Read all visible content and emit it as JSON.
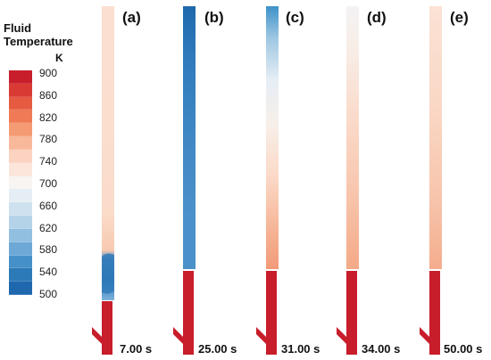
{
  "legend": {
    "title_line1": "Fluid",
    "title_line2": "Temperature",
    "unit": "K",
    "ticks": [
      "900",
      "860",
      "820",
      "780",
      "740",
      "700",
      "660",
      "620",
      "580",
      "540",
      "500"
    ],
    "colors": [
      "#c81d2b",
      "#d93a34",
      "#e55a40",
      "#ef7a55",
      "#f59b74",
      "#f8b89a",
      "#fbd3c0",
      "#fce6db",
      "#f7f4f1",
      "#e6eef5",
      "#cfe1ee",
      "#b4d2e8",
      "#91bfe0",
      "#6ea8d6",
      "#4690c8",
      "#2d7ab8",
      "#1f68ad"
    ]
  },
  "panels": [
    {
      "label": "(a)",
      "time": "7.00 s"
    },
    {
      "label": "(b)",
      "time": "25.00 s"
    },
    {
      "label": "(c)",
      "time": "31.00 s"
    },
    {
      "label": "(d)",
      "time": "34.00 s"
    },
    {
      "label": "(e)",
      "time": "50.00 s"
    }
  ]
}
